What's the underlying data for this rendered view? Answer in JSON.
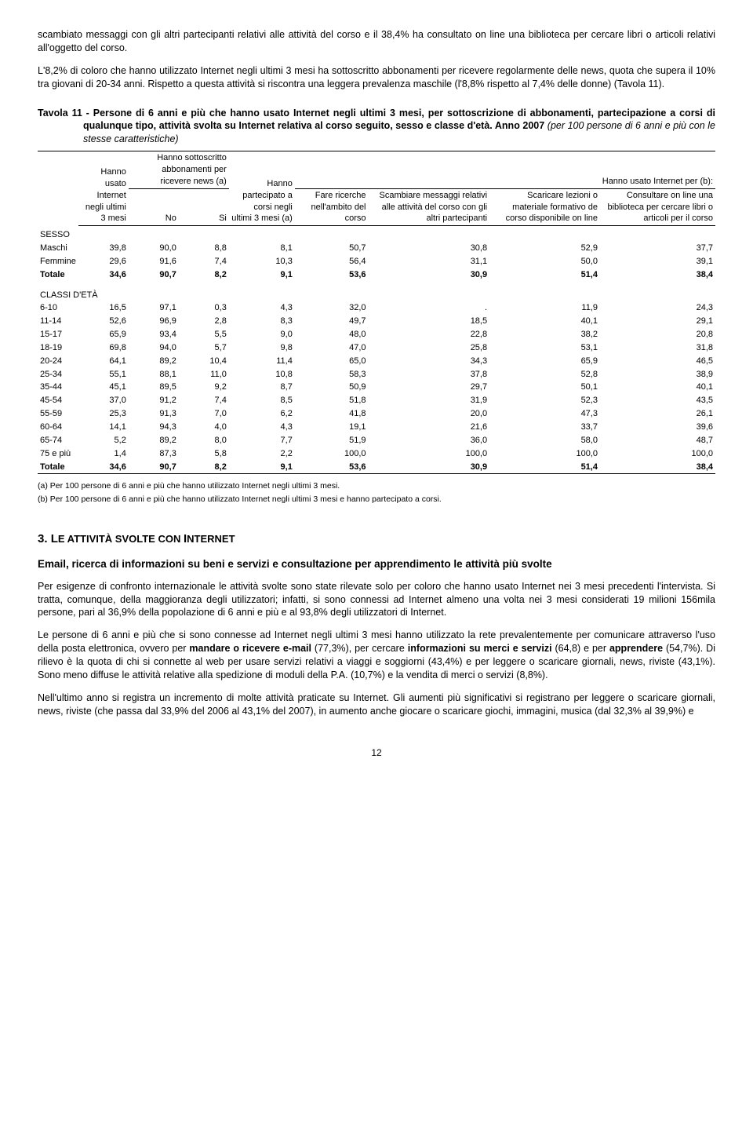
{
  "para1": "scambiato messaggi con gli altri partecipanti relativi alle attività del corso e il 38,4% ha consultato on line una biblioteca per cercare libri o articoli relativi all'oggetto del corso.",
  "para2": "L'8,2% di coloro che hanno utilizzato Internet negli ultimi 3 mesi ha sottoscritto abbonamenti per ricevere regolarmente delle news, quota che supera il 10% tra giovani di 20-34 anni. Rispetto a questa attività si riscontra una leggera prevalenza maschile (l'8,8% rispetto al 7,4% delle donne) (Tavola 11).",
  "tableTitle": "Tavola 11 - Persone di 6 anni e più che hanno usato Internet negli ultimi 3 mesi, per sottoscrizione di abbonamenti, partecipazione a corsi di qualunque tipo, attività svolta su Internet relativa al corso seguito, sesso e classe d'età. ",
  "tableTitle2": "Anno 2007 ",
  "tableTitle3": "(per 100 persone di 6 anni e più con le stesse caratteristiche)",
  "headers": {
    "c1": "Hanno usato Internet negli ultimi 3 mesi",
    "group1": "Hanno sottoscritto abbonamenti per ricevere news (a)",
    "c2": "No",
    "c3": "Si",
    "c4": "Hanno partecipato a corsi negli ultimi 3 mesi (a)",
    "group2": "Hanno usato Internet per (b):",
    "c5": "Fare ricerche nell'ambito del corso",
    "c6": "Scambiare messaggi relativi alle attività del corso con gli altri partecipanti",
    "c7": "Scaricare lezioni o materiale formativo de corso disponibile on line",
    "c8": "Consultare on line una biblioteca per cercare libri o articoli per il corso"
  },
  "sections": {
    "sesso": "SESSO",
    "classi": "CLASSI D'ETÀ"
  },
  "rows_sesso": [
    {
      "label": "Maschi",
      "v": [
        "39,8",
        "90,0",
        "8,8",
        "8,1",
        "50,7",
        "30,8",
        "52,9",
        "37,7"
      ]
    },
    {
      "label": "Femmine",
      "v": [
        "29,6",
        "91,6",
        "7,4",
        "10,3",
        "56,4",
        "31,1",
        "50,0",
        "39,1"
      ]
    },
    {
      "label": "Totale",
      "v": [
        "34,6",
        "90,7",
        "8,2",
        "9,1",
        "53,6",
        "30,9",
        "51,4",
        "38,4"
      ],
      "bold": true
    }
  ],
  "rows_classi": [
    {
      "label": "6-10",
      "v": [
        "16,5",
        "97,1",
        "0,3",
        "4,3",
        "32,0",
        ".",
        "11,9",
        "24,3"
      ]
    },
    {
      "label": "11-14",
      "v": [
        "52,6",
        "96,9",
        "2,8",
        "8,3",
        "49,7",
        "18,5",
        "40,1",
        "29,1"
      ]
    },
    {
      "label": "15-17",
      "v": [
        "65,9",
        "93,4",
        "5,5",
        "9,0",
        "48,0",
        "22,8",
        "38,2",
        "20,8"
      ]
    },
    {
      "label": "18-19",
      "v": [
        "69,8",
        "94,0",
        "5,7",
        "9,8",
        "47,0",
        "25,8",
        "53,1",
        "31,8"
      ]
    },
    {
      "label": "20-24",
      "v": [
        "64,1",
        "89,2",
        "10,4",
        "11,4",
        "65,0",
        "34,3",
        "65,9",
        "46,5"
      ]
    },
    {
      "label": "25-34",
      "v": [
        "55,1",
        "88,1",
        "11,0",
        "10,8",
        "58,3",
        "37,8",
        "52,8",
        "38,9"
      ]
    },
    {
      "label": "35-44",
      "v": [
        "45,1",
        "89,5",
        "9,2",
        "8,7",
        "50,9",
        "29,7",
        "50,1",
        "40,1"
      ]
    },
    {
      "label": "45-54",
      "v": [
        "37,0",
        "91,2",
        "7,4",
        "8,5",
        "51,8",
        "31,9",
        "52,3",
        "43,5"
      ]
    },
    {
      "label": "55-59",
      "v": [
        "25,3",
        "91,3",
        "7,0",
        "6,2",
        "41,8",
        "20,0",
        "47,3",
        "26,1"
      ]
    },
    {
      "label": "60-64",
      "v": [
        "14,1",
        "94,3",
        "4,0",
        "4,3",
        "19,1",
        "21,6",
        "33,7",
        "39,6"
      ]
    },
    {
      "label": "65-74",
      "v": [
        "5,2",
        "89,2",
        "8,0",
        "7,7",
        "51,9",
        "36,0",
        "58,0",
        "48,7"
      ]
    },
    {
      "label": "75 e più",
      "v": [
        "1,4",
        "87,3",
        "5,8",
        "2,2",
        "100,0",
        "100,0",
        "100,0",
        "100,0"
      ]
    },
    {
      "label": "Totale",
      "v": [
        "34,6",
        "90,7",
        "8,2",
        "9,1",
        "53,6",
        "30,9",
        "51,4",
        "38,4"
      ],
      "bold": true
    }
  ],
  "footnotes": [
    "(a) Per 100 persone di 6 anni e più che hanno utilizzato Internet negli ultimi 3 mesi.",
    "(b) Per 100 persone di 6 anni e più che hanno utilizzato Internet negli ultimi 3 mesi e hanno partecipato a corsi."
  ],
  "sectionNum": "3. ",
  "sectionHead1": "L",
  "sectionHead2": "E ATTIVITÀ SVOLTE CON ",
  "sectionHead3": "I",
  "sectionHead4": "NTERNET",
  "subHead": "Email, ricerca di informazioni su beni e servizi e consultazione per apprendimento le attività più svolte",
  "p3": "Per esigenze di confronto internazionale le attività svolte sono state rilevate solo per coloro che hanno usato Internet nei 3 mesi precedenti l'intervista. Si tratta, comunque, della maggioranza degli utilizzatori; infatti, si sono connessi ad Internet almeno una volta nei 3 mesi considerati 19 milioni 156mila persone, pari al 36,9% della popolazione di 6 anni e più e al 93,8% degli utilizzatori di Internet.",
  "p4a": "Le persone di 6 anni e più che si sono connesse ad Internet negli ultimi 3 mesi hanno utilizzato la rete prevalentemente per comunicare attraverso l'uso della posta elettronica, ovvero per ",
  "p4b": "mandare o ricevere e-mail",
  "p4c": " (77,3%), per cercare ",
  "p4d": "informazioni su merci e servizi",
  "p4e": " (64,8) e per ",
  "p4f": "apprendere",
  "p4g": " (54,7%). Di rilievo è la quota di chi si connette al web per usare servizi relativi a viaggi e soggiorni (43,4%) e per leggere o scaricare giornali, news, riviste (43,1%). Sono meno diffuse le attività relative alla spedizione di moduli della P.A. (10,7%) e la vendita di merci o servizi (8,8%).",
  "p5": "Nell'ultimo anno si registra un incremento di molte attività praticate su Internet. Gli aumenti più significativi si registrano per leggere o scaricare giornali, news, riviste (che passa dal 33,9% del 2006 al 43,1% del 2007), in aumento anche giocare o scaricare giochi, immagini, musica (dal 32,3% al 39,9%) e",
  "pageNum": "12"
}
